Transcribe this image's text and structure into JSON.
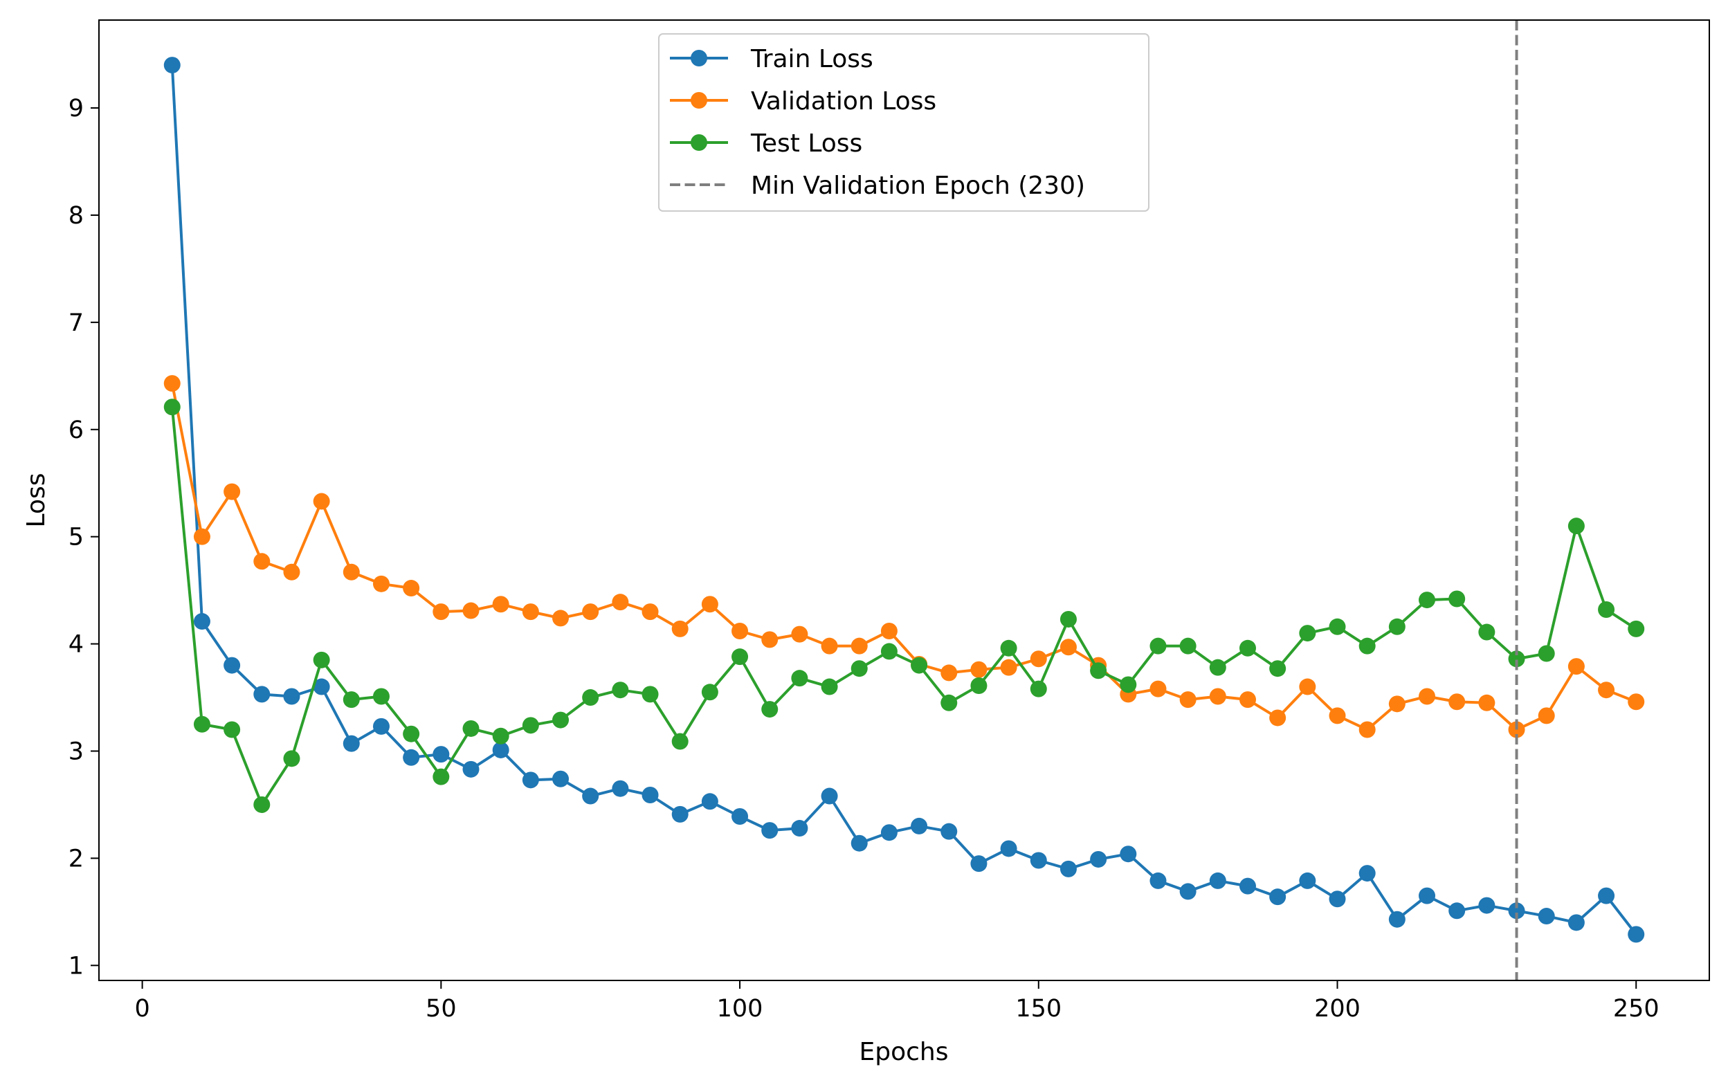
{
  "chart_data": {
    "type": "line",
    "title": "",
    "xlabel": "Epochs",
    "ylabel": "Loss",
    "xlim": [
      -7.25,
      262.25
    ],
    "ylim": [
      0.86,
      9.82
    ],
    "xticks": [
      0,
      50,
      100,
      150,
      200,
      250
    ],
    "yticks": [
      1,
      2,
      3,
      4,
      5,
      6,
      7,
      8,
      9
    ],
    "grid": false,
    "legend_position": "top-center",
    "x": [
      5,
      10,
      15,
      20,
      25,
      30,
      35,
      40,
      45,
      50,
      55,
      60,
      65,
      70,
      75,
      80,
      85,
      90,
      95,
      100,
      105,
      110,
      115,
      120,
      125,
      130,
      135,
      140,
      145,
      150,
      155,
      160,
      165,
      170,
      175,
      180,
      185,
      190,
      195,
      200,
      205,
      210,
      215,
      220,
      225,
      230,
      235,
      240,
      245,
      250
    ],
    "series": [
      {
        "name": "Train Loss",
        "color": "#1f77b4",
        "values": [
          9.4,
          4.21,
          3.8,
          3.53,
          3.51,
          3.6,
          3.07,
          3.23,
          2.94,
          2.97,
          2.83,
          3.01,
          2.73,
          2.74,
          2.58,
          2.65,
          2.59,
          2.41,
          2.53,
          2.39,
          2.26,
          2.28,
          2.58,
          2.14,
          2.24,
          2.3,
          2.25,
          1.95,
          2.09,
          1.98,
          1.9,
          1.99,
          2.04,
          1.79,
          1.69,
          1.79,
          1.74,
          1.64,
          1.79,
          1.62,
          1.86,
          1.43,
          1.65,
          1.51,
          1.56,
          1.51,
          1.46,
          1.4,
          1.65,
          1.29
        ]
      },
      {
        "name": "Validation Loss",
        "color": "#ff7f0e",
        "values": [
          6.43,
          5.0,
          5.42,
          4.77,
          4.67,
          5.33,
          4.67,
          4.56,
          4.52,
          4.3,
          4.31,
          4.37,
          4.3,
          4.24,
          4.3,
          4.39,
          4.3,
          4.14,
          4.37,
          4.12,
          4.04,
          4.09,
          3.98,
          3.98,
          4.12,
          3.81,
          3.73,
          3.76,
          3.78,
          3.86,
          3.97,
          3.8,
          3.53,
          3.58,
          3.48,
          3.51,
          3.48,
          3.31,
          3.6,
          3.33,
          3.2,
          3.44,
          3.51,
          3.46,
          3.45,
          3.2,
          3.33,
          3.79,
          3.57,
          3.46
        ]
      },
      {
        "name": "Test Loss",
        "color": "#2ca02c",
        "values": [
          6.21,
          3.25,
          3.2,
          2.5,
          2.93,
          3.85,
          3.48,
          3.51,
          3.16,
          2.76,
          3.21,
          3.14,
          3.24,
          3.29,
          3.5,
          3.57,
          3.53,
          3.09,
          3.55,
          3.88,
          3.39,
          3.68,
          3.6,
          3.77,
          3.93,
          3.8,
          3.45,
          3.61,
          3.96,
          3.58,
          4.23,
          3.75,
          3.62,
          3.98,
          3.98,
          3.78,
          3.96,
          3.77,
          4.1,
          4.16,
          3.98,
          4.16,
          4.41,
          4.42,
          4.11,
          3.86,
          3.91,
          5.1,
          4.32,
          4.14
        ]
      }
    ],
    "vline": {
      "x": 230,
      "label": "Min Validation Epoch (230)",
      "color": "#7f7f7f",
      "style": "dashed"
    }
  }
}
